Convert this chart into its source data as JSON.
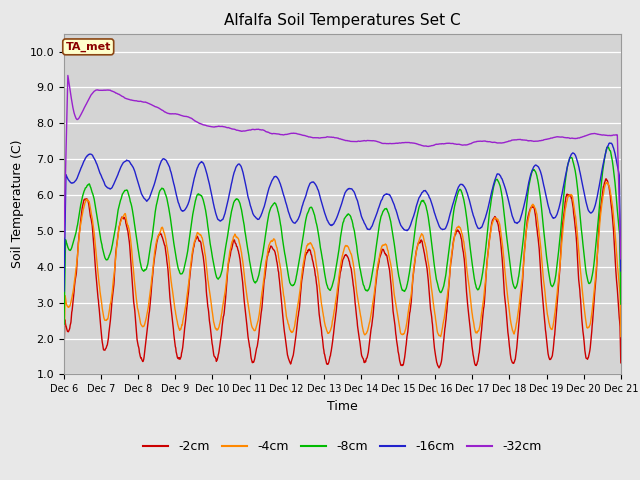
{
  "title": "Alfalfa Soil Temperatures Set C",
  "xlabel": "Time",
  "ylabel": "Soil Temperature (C)",
  "ylim": [
    1.0,
    10.5
  ],
  "xlim": [
    0,
    360
  ],
  "background_color": "#e8e8e8",
  "plot_bg_color": "#d4d4d4",
  "grid_color": "#ffffff",
  "tick_labels": [
    "Dec 6",
    "Dec 7",
    "Dec 8",
    "Dec 9",
    "Dec 10",
    "Dec 11",
    "Dec 12",
    "Dec 13",
    "Dec 14",
    "Dec 15",
    "Dec 16",
    "Dec 17",
    "Dec 18",
    "Dec 19",
    "Dec 20",
    "Dec 21"
  ],
  "tick_positions": [
    0,
    24,
    48,
    72,
    96,
    120,
    144,
    168,
    192,
    216,
    240,
    264,
    288,
    312,
    336,
    360
  ],
  "yticks": [
    1.0,
    2.0,
    3.0,
    4.0,
    5.0,
    6.0,
    7.0,
    8.0,
    9.0,
    10.0
  ],
  "colors": {
    "2cm": "#cc0000",
    "4cm": "#ff8800",
    "8cm": "#00bb00",
    "16cm": "#2222cc",
    "32cm": "#9922cc"
  }
}
